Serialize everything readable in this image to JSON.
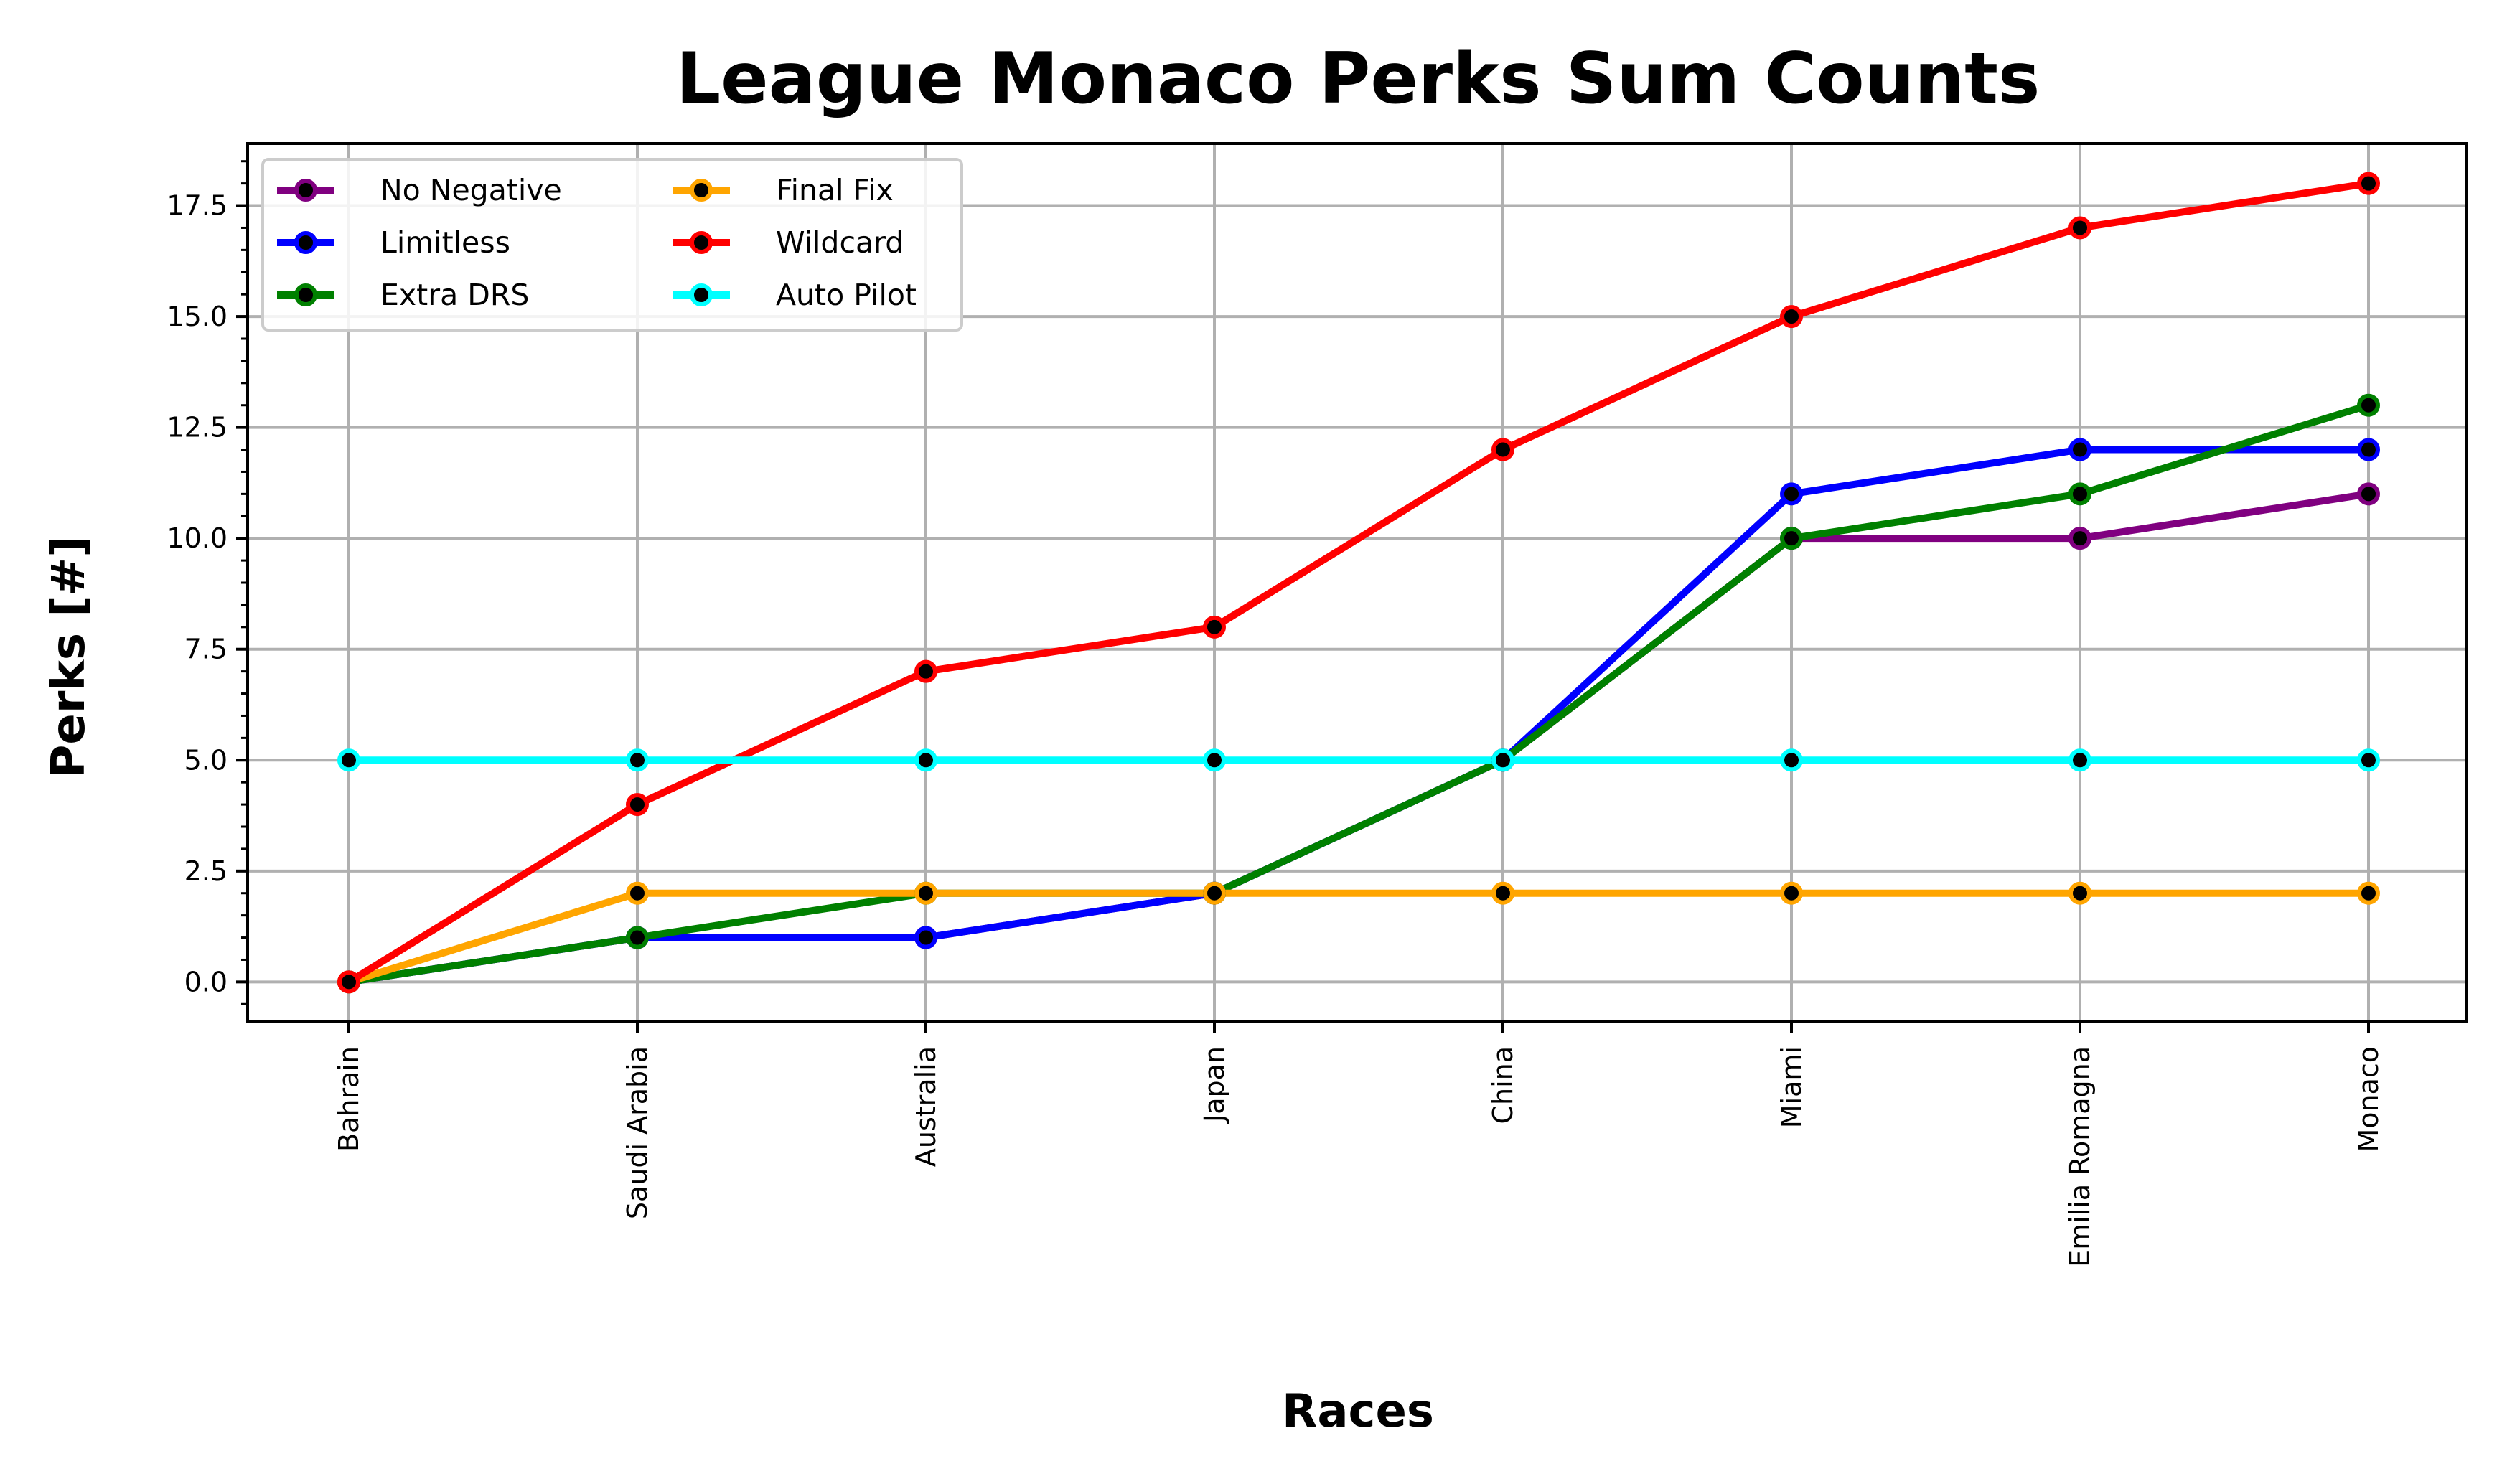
{
  "chart_data": {
    "type": "line",
    "title": "League Monaco Perks Sum Counts",
    "xlabel": "Races",
    "ylabel": "Perks [#]",
    "categories": [
      "Bahrain",
      "Saudi Arabia",
      "Australia",
      "Japan",
      "China",
      "Miami",
      "Emilia Romagna",
      "Monaco"
    ],
    "ylim": [
      -0.9,
      18.9
    ],
    "yticks": [
      0.0,
      2.5,
      5.0,
      7.5,
      10.0,
      12.5,
      15.0,
      17.5
    ],
    "ytick_labels": [
      "0.0",
      "2.5",
      "5.0",
      "7.5",
      "10.0",
      "12.5",
      "15.0",
      "17.5"
    ],
    "grid": true,
    "legend_position": "top-left",
    "legend_columns": 2,
    "marker_fill_color": "#000000",
    "series": [
      {
        "name": "No Negative",
        "color": "#800080",
        "values": [
          0,
          1,
          1,
          2,
          5,
          10,
          10,
          11
        ]
      },
      {
        "name": "Limitless",
        "color": "#0000ff",
        "values": [
          0,
          1,
          1,
          2,
          5,
          11,
          12,
          12
        ]
      },
      {
        "name": "Extra DRS",
        "color": "#008000",
        "values": [
          0,
          1,
          2,
          2,
          5,
          10,
          11,
          13
        ]
      },
      {
        "name": "Final Fix",
        "color": "#ffa500",
        "values": [
          0,
          2,
          2,
          2,
          2,
          2,
          2,
          2
        ]
      },
      {
        "name": "Wildcard",
        "color": "#ff0000",
        "values": [
          0,
          4,
          7,
          8,
          12,
          15,
          17,
          18
        ]
      },
      {
        "name": "Auto Pilot",
        "color": "#00ffff",
        "values": [
          5,
          5,
          5,
          5,
          5,
          5,
          5,
          5
        ]
      }
    ]
  }
}
